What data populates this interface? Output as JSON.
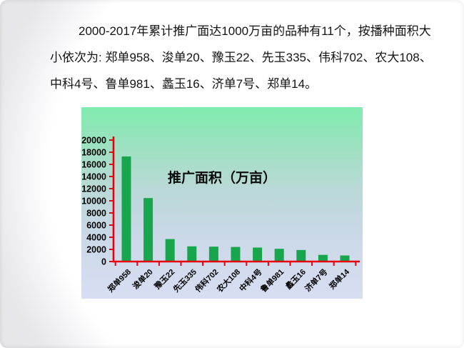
{
  "intro": {
    "lines": [
      "2000-2017年累计推广面达1000万亩的品种有11个，按播种面积大",
      "小依次为: 郑单958、浚单20、豫玉22、先玉335、伟科702、农大108、",
      "中科4号、鲁单981、蠡玉16、济单7号、郑单14。"
    ]
  },
  "chart_data": {
    "type": "bar",
    "title": "推广面积（万亩）",
    "categories": [
      "郑单958",
      "浚单20",
      "豫玉22",
      "先玉335",
      "伟科702",
      "农大108",
      "中科4号",
      "鲁单981",
      "蠡玉16",
      "济单7号",
      "郑单14"
    ],
    "values": [
      17300,
      10450,
      3700,
      2500,
      2450,
      2400,
      2300,
      2100,
      1900,
      1100,
      1000
    ],
    "xlabel": "",
    "ylabel": "",
    "ylim": [
      0,
      20000
    ],
    "ytick_step": 2000,
    "grid": "off",
    "legend": "none",
    "axis_color": "#e8000f",
    "bar_color": "#17a54e",
    "label_color": "#000000",
    "bg_gradient": [
      "#7fecae",
      "#b9d9d6",
      "#d8def2"
    ]
  }
}
